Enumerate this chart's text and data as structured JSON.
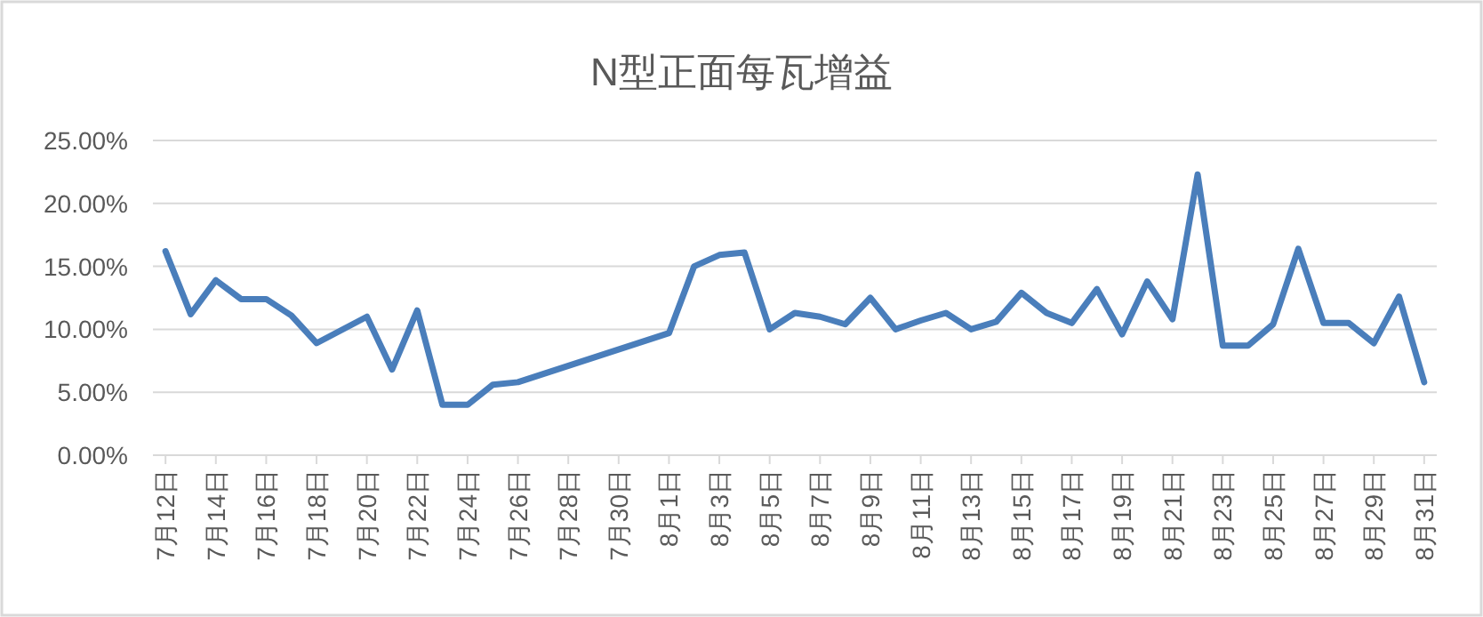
{
  "chart_data": {
    "type": "line",
    "title": "N型正面每瓦增益",
    "series": [
      {
        "color": "#4a7ebb",
        "x": [
          "--07-12",
          "--07-13",
          "--07-14",
          "--07-15",
          "--07-16",
          "--07-17",
          "--07-18",
          "--07-20",
          "--07-21",
          "--07-22",
          "--07-23",
          "--07-24",
          "--07-25",
          "--07-26",
          "--08-01",
          "--08-02",
          "--08-03",
          "--08-04",
          "--08-05",
          "--08-06",
          "--08-07",
          "--08-08",
          "--08-09",
          "--08-10",
          "--08-11",
          "--08-12",
          "--08-13",
          "--08-14",
          "--08-15",
          "--08-16",
          "--08-17",
          "--08-18",
          "--08-19",
          "--08-20",
          "--08-21",
          "--08-22",
          "--08-23",
          "--08-24",
          "--08-25",
          "--08-26",
          "--08-27",
          "--08-28",
          "--08-29",
          "--08-30",
          "--08-31"
        ],
        "values": [
          16.2,
          11.2,
          13.9,
          12.4,
          12.4,
          11.1,
          8.9,
          11.0,
          6.8,
          11.5,
          4.0,
          4.0,
          5.6,
          5.8,
          9.7,
          15.0,
          15.9,
          16.1,
          10.0,
          11.3,
          11.0,
          10.4,
          12.5,
          10.0,
          10.7,
          11.3,
          10.0,
          10.6,
          12.9,
          11.3,
          10.5,
          13.2,
          9.6,
          13.8,
          10.8,
          22.3,
          8.7,
          8.7,
          10.4,
          16.4,
          10.5,
          10.5,
          8.9,
          12.6,
          5.8
        ]
      }
    ],
    "xlim": [
      "--07-11T12:00",
      "--08-31T12:00"
    ],
    "xticks": [
      {
        "value": "--07-12",
        "label": "7月12日"
      },
      {
        "value": "--07-14",
        "label": "7月14日"
      },
      {
        "value": "--07-16",
        "label": "7月16日"
      },
      {
        "value": "--07-18",
        "label": "7月18日"
      },
      {
        "value": "--07-20",
        "label": "7月20日"
      },
      {
        "value": "--07-22",
        "label": "7月22日"
      },
      {
        "value": "--07-24",
        "label": "7月24日"
      },
      {
        "value": "--07-26",
        "label": "7月26日"
      },
      {
        "value": "--07-28",
        "label": "7月28日"
      },
      {
        "value": "--07-30",
        "label": "7月30日"
      },
      {
        "value": "--08-01",
        "label": "8月1日"
      },
      {
        "value": "--08-03",
        "label": "8月3日"
      },
      {
        "value": "--08-05",
        "label": "8月5日"
      },
      {
        "value": "--08-07",
        "label": "8月7日"
      },
      {
        "value": "--08-09",
        "label": "8月9日"
      },
      {
        "value": "--08-11",
        "label": "8月11日"
      },
      {
        "value": "--08-13",
        "label": "8月13日"
      },
      {
        "value": "--08-15",
        "label": "8月15日"
      },
      {
        "value": "--08-17",
        "label": "8月17日"
      },
      {
        "value": "--08-19",
        "label": "8月19日"
      },
      {
        "value": "--08-21",
        "label": "8月21日"
      },
      {
        "value": "--08-23",
        "label": "8月23日"
      },
      {
        "value": "--08-25",
        "label": "8月25日"
      },
      {
        "value": "--08-27",
        "label": "8月27日"
      },
      {
        "value": "--08-29",
        "label": "8月29日"
      },
      {
        "value": "--08-31",
        "label": "8月31日"
      }
    ],
    "ylim": [
      0,
      25
    ],
    "yticks": [
      {
        "value": 0,
        "label": "0.00%"
      },
      {
        "value": 5,
        "label": "5.00%"
      },
      {
        "value": 10,
        "label": "10.00%"
      },
      {
        "value": 15,
        "label": "15.00%"
      },
      {
        "value": 20,
        "label": "20.00%"
      },
      {
        "value": 25,
        "label": "25.00%"
      }
    ],
    "grid": "y",
    "marker": "none",
    "line_style": "solid"
  }
}
